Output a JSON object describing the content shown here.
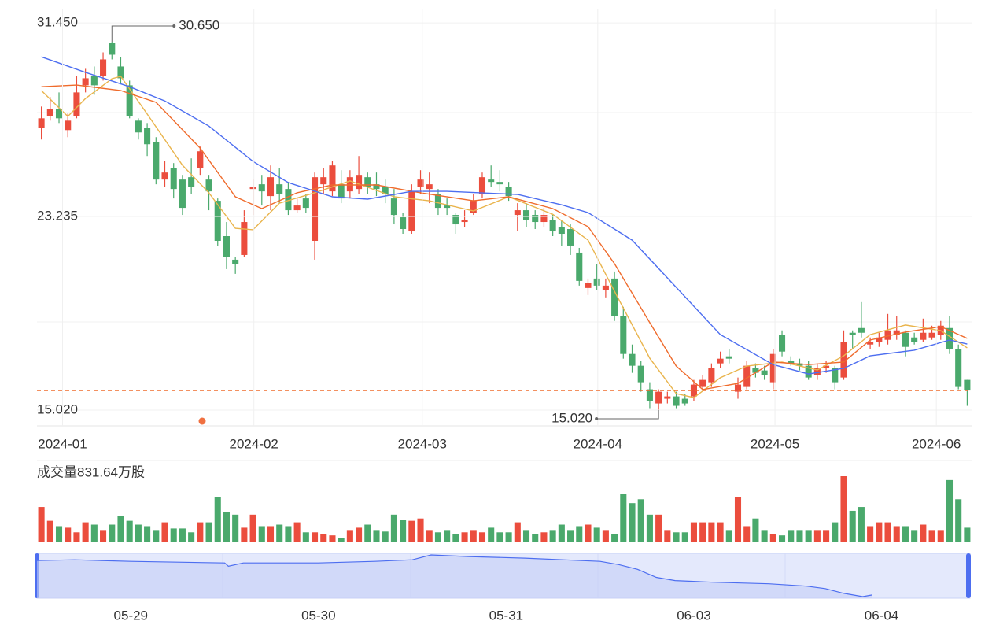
{
  "chart_data": [
    {
      "type": "candlestick",
      "open": [
        27.0,
        27.5,
        27.8,
        26.9,
        27.5,
        28.8,
        29.2,
        29.2,
        30.6,
        29.6,
        28.8,
        27.3,
        27.0,
        26.4,
        24.8,
        25.3,
        24.8,
        24.9,
        25.3,
        24.8,
        23.9,
        22.4,
        21.4,
        21.6,
        24.4,
        24.6,
        24.1,
        24.6,
        24.4,
        23.5,
        24.0,
        22.2,
        24.6,
        24.3,
        24.6,
        24.3,
        24.4,
        24.9,
        24.6,
        24.5,
        24.0,
        23.2,
        22.6,
        24.5,
        24.4,
        24.2,
        23.7,
        23.3,
        23.0,
        23.4,
        24.2,
        24.8,
        24.7,
        24.5,
        23.3,
        23.5,
        23.3,
        23.0,
        23.1,
        22.8,
        22.7,
        21.7,
        20.2,
        20.6,
        20.1,
        20.6,
        19.0,
        17.4,
        16.9,
        15.9,
        15.3,
        15.5,
        15.6,
        15.5,
        15.6,
        16.0,
        16.2,
        17.0,
        17.3,
        15.8,
        16.0,
        16.8,
        16.7,
        16.2,
        18.2,
        17.1,
        17.0,
        16.9,
        16.5,
        16.8,
        16.8,
        16.4,
        18.3,
        18.5,
        17.8,
        17.9,
        18.0,
        18.2,
        18.3,
        18.1,
        18.0,
        18.1,
        18.2,
        18.5,
        17.6,
        16.3
      ],
      "high": [
        27.9,
        28.3,
        28.5,
        27.6,
        29.2,
        29.5,
        29.6,
        30.2,
        30.65,
        30.0,
        29.0,
        27.4,
        27.2,
        26.6,
        25.6,
        25.5,
        25.0,
        25.7,
        26.2,
        25.0,
        24.0,
        23.0,
        21.5,
        23.5,
        24.8,
        25.0,
        25.4,
        25.3,
        24.7,
        24.0,
        24.2,
        25.1,
        25.3,
        25.6,
        25.2,
        25.2,
        25.8,
        25.1,
        25.1,
        24.8,
        24.4,
        23.4,
        24.6,
        25.2,
        25.1,
        24.4,
        24.0,
        23.4,
        23.5,
        24.2,
        25.1,
        25.4,
        25.2,
        24.7,
        23.8,
        23.8,
        23.5,
        23.6,
        23.3,
        23.1,
        22.9,
        21.9,
        20.6,
        21.2,
        20.6,
        20.9,
        19.4,
        17.8,
        17.1,
        16.2,
        15.9,
        15.8,
        15.8,
        15.7,
        16.3,
        16.5,
        17.0,
        17.5,
        17.6,
        16.4,
        17.1,
        17.0,
        16.9,
        17.6,
        18.4,
        17.3,
        17.2,
        17.1,
        17.0,
        17.1,
        16.9,
        18.4,
        18.4,
        19.6,
        18.1,
        18.3,
        19.1,
        19.0,
        18.4,
        18.3,
        18.9,
        18.6,
        18.8,
        19.0,
        17.8,
        16.3
      ],
      "low": [
        26.5,
        27.3,
        27.2,
        26.6,
        27.4,
        28.5,
        28.4,
        29.0,
        29.9,
        28.9,
        27.4,
        26.5,
        25.8,
        24.6,
        24.5,
        24.0,
        23.3,
        24.2,
        25.0,
        23.5,
        22.0,
        21.0,
        20.8,
        21.5,
        23.3,
        23.7,
        23.5,
        23.8,
        23.3,
        23.4,
        23.4,
        21.4,
        24.2,
        24.1,
        23.8,
        24.0,
        24.2,
        24.2,
        24.1,
        23.8,
        22.9,
        22.5,
        22.5,
        24.2,
        23.8,
        23.3,
        23.3,
        22.5,
        22.8,
        23.3,
        24.0,
        24.5,
        24.3,
        23.9,
        22.6,
        22.8,
        22.7,
        22.8,
        22.4,
        22.0,
        21.6,
        20.3,
        19.9,
        20.1,
        19.8,
        18.8,
        17.2,
        16.6,
        15.8,
        15.1,
        15.02,
        15.3,
        15.1,
        15.2,
        15.4,
        15.8,
        16.0,
        16.8,
        17.0,
        15.5,
        15.9,
        16.4,
        16.3,
        15.9,
        17.3,
        16.9,
        16.7,
        16.3,
        16.3,
        16.6,
        15.9,
        16.3,
        17.6,
        18.1,
        17.6,
        17.7,
        17.8,
        18.0,
        17.3,
        17.8,
        17.9,
        18.0,
        18.0,
        17.4,
        15.9,
        15.2
      ],
      "close": [
        27.4,
        27.8,
        27.4,
        27.3,
        28.5,
        29.1,
        28.8,
        29.9,
        30.1,
        29.1,
        27.5,
        26.8,
        26.3,
        24.8,
        25.1,
        24.4,
        23.6,
        24.5,
        26.0,
        24.3,
        22.2,
        21.5,
        21.2,
        23.0,
        24.5,
        24.3,
        24.9,
        24.2,
        23.5,
        23.7,
        23.6,
        24.9,
        24.9,
        25.4,
        24.0,
        24.9,
        25.0,
        24.5,
        24.4,
        24.2,
        23.3,
        22.7,
        24.3,
        24.8,
        24.6,
        23.6,
        23.6,
        22.9,
        23.1,
        23.9,
        24.9,
        24.7,
        24.6,
        24.1,
        23.5,
        23.1,
        23.0,
        23.3,
        22.6,
        22.5,
        22.0,
        20.5,
        20.4,
        20.3,
        20.3,
        19.0,
        17.4,
        16.9,
        16.2,
        15.4,
        15.8,
        15.6,
        15.2,
        15.3,
        16.1,
        16.3,
        16.8,
        17.2,
        17.2,
        16.1,
        16.9,
        16.6,
        16.5,
        17.4,
        17.5,
        17.0,
        16.9,
        16.4,
        16.8,
        16.9,
        16.2,
        17.9,
        18.2,
        18.3,
        17.9,
        18.1,
        18.4,
        18.4,
        17.7,
        17.9,
        18.3,
        18.3,
        18.6,
        17.6,
        16.0,
        15.85
      ],
      "up_color": "#eb4d3d",
      "down_color": "#4aa96c",
      "lines": [
        {
          "color": "#e9b44c",
          "x": [
            0,
            3,
            5,
            8,
            9,
            12,
            16,
            19,
            22,
            24,
            27,
            31,
            35,
            40,
            44,
            49,
            53,
            58,
            62,
            65,
            69,
            72,
            74,
            77,
            80,
            84,
            88,
            91,
            94,
            98,
            102,
            105
          ],
          "values": [
            28.58,
            27.48,
            28.24,
            29.08,
            29.18,
            27.58,
            25.41,
            24.24,
            22.73,
            22.67,
            23.8,
            24.24,
            24.74,
            24.07,
            23.9,
            23.47,
            24.07,
            23.33,
            22.23,
            20.06,
            17.22,
            15.72,
            15.55,
            16.39,
            16.89,
            17.06,
            16.72,
            17.32,
            18.22,
            18.63,
            18.39,
            17.66
          ]
        },
        {
          "color": "#ef6b2c",
          "x": [
            0,
            4,
            9,
            13,
            18,
            22,
            25,
            29,
            33,
            38,
            43,
            49,
            53,
            58,
            62,
            65,
            69,
            72,
            75,
            79,
            83,
            87,
            91,
            94,
            98,
            102,
            105
          ],
          "values": [
            28.74,
            28.81,
            28.58,
            28.08,
            26.14,
            24.07,
            23.57,
            24.24,
            24.57,
            24.57,
            24.24,
            23.9,
            24.07,
            23.57,
            22.8,
            21.23,
            18.73,
            16.89,
            15.89,
            16.15,
            17.06,
            16.95,
            17.06,
            17.99,
            18.33,
            18.56,
            18.06
          ]
        },
        {
          "color": "#4d6ef0",
          "x": [
            0,
            5,
            10,
            14,
            19,
            24,
            28,
            33,
            37,
            42,
            46,
            54,
            59,
            62,
            67,
            72,
            77,
            83,
            87,
            91,
            94,
            99,
            103,
            105
          ],
          "values": [
            30.01,
            29.35,
            28.74,
            28.14,
            27.07,
            25.57,
            24.67,
            24.07,
            23.97,
            24.3,
            24.3,
            24.17,
            23.73,
            23.4,
            22.23,
            20.23,
            18.22,
            16.95,
            16.55,
            16.79,
            17.32,
            17.56,
            17.99,
            17.82
          ]
        }
      ],
      "ylim": [
        14.35,
        32.02
      ],
      "yticks": [
        {
          "value": 31.45,
          "label": "31.450"
        },
        {
          "value": 23.235,
          "label": "23.235"
        },
        {
          "value": 15.02,
          "label": "15.020"
        }
      ],
      "xticks": [
        {
          "value": 2.4,
          "label": "2024-01"
        },
        {
          "value": 24.1,
          "label": "2024-02"
        },
        {
          "value": 43.2,
          "label": "2024-03"
        },
        {
          "value": 63.1,
          "label": "2024-04"
        },
        {
          "value": 83.2,
          "label": "2024-05"
        },
        {
          "value": 101.5,
          "label": "2024-06"
        }
      ],
      "annotations": [
        "30.650",
        "15.020"
      ]
    },
    {
      "type": "bar",
      "title": "成交量831.64万股",
      "values": [
        45,
        27,
        20,
        18,
        12,
        25,
        22,
        15,
        22,
        33,
        27,
        22,
        20,
        15,
        25,
        17,
        17,
        12,
        25,
        25,
        58,
        38,
        35,
        18,
        35,
        20,
        20,
        22,
        20,
        25,
        12,
        12,
        10,
        8,
        5,
        15,
        18,
        22,
        15,
        13,
        35,
        28,
        27,
        30,
        15,
        12,
        15,
        10,
        12,
        15,
        12,
        18,
        12,
        12,
        25,
        15,
        10,
        12,
        15,
        22,
        15,
        20,
        22,
        18,
        15,
        10,
        62,
        50,
        55,
        35,
        35,
        15,
        12,
        12,
        25,
        25,
        25,
        25,
        15,
        58,
        20,
        30,
        15,
        10,
        8,
        15,
        15,
        15,
        15,
        15,
        25,
        85,
        40,
        45,
        20,
        25,
        25,
        20,
        20,
        15,
        22,
        15,
        15,
        80,
        55,
        18
      ]
    },
    {
      "type": "line",
      "color": "#4d6ef0",
      "x": [
        0,
        0.2,
        0.5,
        1.0,
        1.02,
        1.1,
        1.5,
        1.8,
        2.0,
        2.1,
        2.3,
        2.6,
        3.0,
        3.1,
        3.2,
        3.3,
        3.4,
        3.6,
        3.9,
        4.1,
        4.2,
        4.3,
        4.4,
        4.45
      ],
      "values": [
        28.43,
        28.71,
        28.14,
        27.57,
        26.43,
        27.57,
        27.57,
        28.14,
        28.71,
        30.43,
        29.86,
        29.29,
        28.14,
        27.0,
        25.29,
        22.43,
        21.29,
        20.71,
        20.14,
        19.29,
        18.43,
        16.71,
        15.57,
        16.14
      ],
      "xlim": [
        0,
        4.98
      ],
      "ylim": [
        15,
        31
      ],
      "xticks": [
        {
          "value": 0.5,
          "label": "05-29"
        },
        {
          "value": 1.5,
          "label": "05-30"
        },
        {
          "value": 2.5,
          "label": "05-31"
        },
        {
          "value": 3.5,
          "label": "06-03"
        },
        {
          "value": 4.5,
          "label": "06-04"
        }
      ]
    }
  ]
}
